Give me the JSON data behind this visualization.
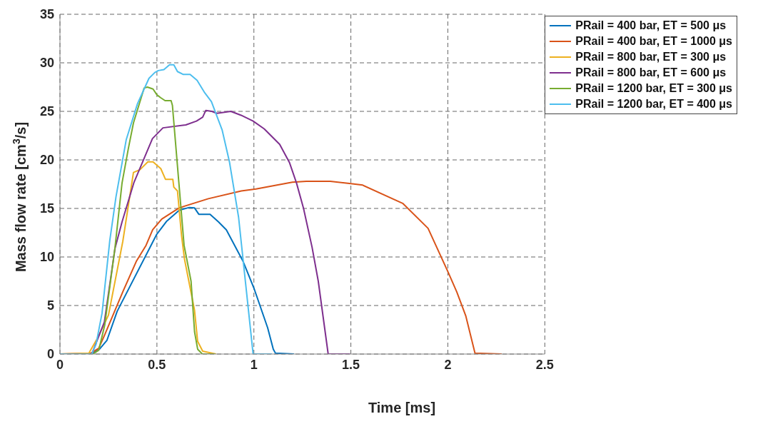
{
  "chart_data": {
    "type": "line",
    "xlabel": "Time [ms]",
    "ylabel": "Mass flow rate [cm$^{3}$/s]",
    "xlim": [
      0,
      2.5
    ],
    "xticks": [
      0,
      0.5,
      1,
      1.5,
      2,
      2.5
    ],
    "ylim": [
      0,
      35
    ],
    "yticks": [
      0,
      5,
      10,
      15,
      20,
      25,
      30,
      35
    ],
    "grid": true,
    "legend": "top right",
    "line_style": "solid",
    "marker": "none",
    "series": [
      {
        "name": "PRail = 400 bar, ET = 500 μs",
        "color": "#0072bd",
        "x": [
          0,
          0.16,
          0.204,
          0.242,
          0.295,
          0.498,
          0.551,
          0.614,
          0.667,
          0.694,
          0.716,
          0.774,
          0.818,
          0.858,
          0.943,
          1.0,
          1.071,
          1.1,
          1.111,
          1.207
        ],
        "values": [
          0,
          0,
          0.5,
          1.4,
          4.4,
          12.3,
          13.7,
          14.8,
          15.1,
          15.05,
          14.4,
          14.4,
          13.6,
          12.8,
          9.6,
          6.8,
          2.7,
          0.5,
          0.1,
          0
        ]
      },
      {
        "name": "PRail = 400 bar, ET = 1000 μs",
        "color": "#d95319",
        "x": [
          0,
          0.16,
          0.2,
          0.231,
          0.324,
          0.395,
          0.444,
          0.478,
          0.525,
          0.614,
          0.765,
          0.935,
          1.011,
          1.198,
          1.27,
          1.394,
          1.5,
          1.561,
          1.769,
          1.898,
          2.0,
          2.046,
          2.093,
          2.14,
          2.278
        ],
        "values": [
          0,
          0.1,
          0.6,
          2.0,
          6.4,
          9.6,
          11.2,
          12.8,
          13.9,
          15.05,
          16.0,
          16.8,
          17.0,
          17.7,
          17.8,
          17.8,
          17.55,
          17.4,
          15.5,
          12.95,
          8.5,
          6.4,
          3.9,
          0.1,
          0
        ]
      },
      {
        "name": "PRail = 800 bar, ET = 300 μs",
        "color": "#edb120",
        "x": [
          0,
          0.15,
          0.155,
          0.195,
          0.25,
          0.324,
          0.379,
          0.413,
          0.453,
          0.48,
          0.52,
          0.544,
          0.582,
          0.587,
          0.606,
          0.627,
          0.642,
          0.694,
          0.71,
          0.736,
          0.805
        ],
        "values": [
          0,
          0.1,
          0.3,
          1.7,
          4.0,
          11.6,
          18.7,
          19.0,
          19.8,
          19.8,
          19.1,
          18.0,
          18.0,
          17.2,
          16.8,
          12.2,
          9.8,
          4.5,
          1.3,
          0.3,
          0
        ]
      },
      {
        "name": "PRail = 800 bar, ET = 600 μs",
        "color": "#7e2f8e",
        "x": [
          0,
          0.164,
          0.229,
          0.284,
          0.32,
          0.382,
          0.477,
          0.531,
          0.649,
          0.704,
          0.736,
          0.752,
          0.783,
          0.809,
          0.881,
          0.934,
          0.996,
          1.053,
          1.133,
          1.184,
          1.22,
          1.256,
          1.3,
          1.332,
          1.383,
          1.496
        ],
        "values": [
          0,
          0,
          3.3,
          10.9,
          13.6,
          17.7,
          22.2,
          23.3,
          23.6,
          24.0,
          24.4,
          25.1,
          25.0,
          24.8,
          25.0,
          24.6,
          24.0,
          23.2,
          21.6,
          19.7,
          17.6,
          15.0,
          11.0,
          7.5,
          0,
          0
        ]
      },
      {
        "name": "PRail = 1200 bar, ET = 300 μs",
        "color": "#77ac30",
        "x": [
          0,
          0.17,
          0.2,
          0.231,
          0.284,
          0.32,
          0.353,
          0.379,
          0.434,
          0.451,
          0.48,
          0.5,
          0.52,
          0.542,
          0.573,
          0.58,
          0.64,
          0.676,
          0.694,
          0.71,
          0.734,
          0.8
        ],
        "values": [
          0,
          0,
          0.4,
          3.0,
          11.0,
          17.6,
          21.2,
          23.8,
          27.4,
          27.5,
          27.3,
          26.7,
          26.4,
          26.1,
          26.1,
          25.6,
          11.2,
          7.5,
          2.3,
          0.5,
          0,
          0
        ]
      },
      {
        "name": "PRail = 1200 bar, ET = 400 μs",
        "color": "#4dbeee",
        "x": [
          0,
          0.164,
          0.186,
          0.217,
          0.257,
          0.289,
          0.342,
          0.4,
          0.459,
          0.489,
          0.507,
          0.536,
          0.565,
          0.587,
          0.606,
          0.636,
          0.671,
          0.707,
          0.747,
          0.781,
          0.836,
          0.874,
          0.921,
          0.947,
          0.996,
          1.093
        ],
        "values": [
          0,
          0,
          1.0,
          4.2,
          11.7,
          16.2,
          22.1,
          25.8,
          28.4,
          29.0,
          29.2,
          29.3,
          29.8,
          29.8,
          29.1,
          28.8,
          28.8,
          28.2,
          26.9,
          26.0,
          23.1,
          19.8,
          14.1,
          9.2,
          0,
          0
        ]
      }
    ]
  }
}
